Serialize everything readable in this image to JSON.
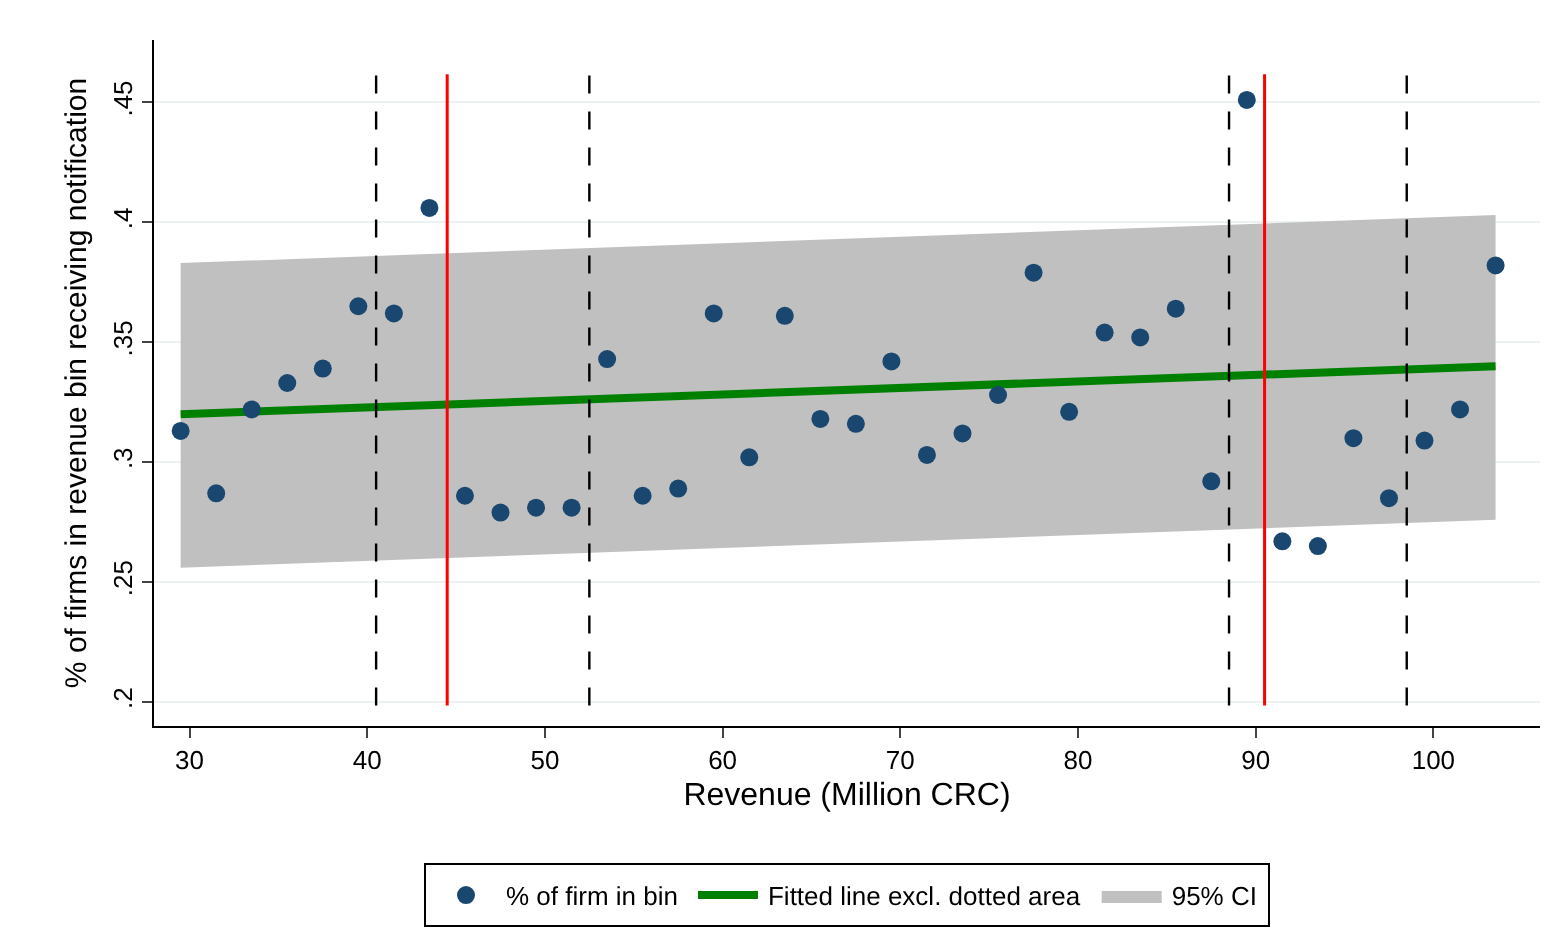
{
  "chart_data": {
    "type": "scatter",
    "xlabel": "Revenue (Million CRC)",
    "ylabel": "% of firms in revenue bin receiving notification",
    "xlim": [
      28,
      106
    ],
    "ylim": [
      0.19,
      0.476
    ],
    "xticks": [
      30,
      40,
      50,
      60,
      70,
      80,
      90,
      100
    ],
    "yticks": [
      {
        "value": 0.2,
        "label": ".2"
      },
      {
        "value": 0.25,
        "label": ".25"
      },
      {
        "value": 0.3,
        "label": ".3"
      },
      {
        "value": 0.35,
        "label": ".35"
      },
      {
        "value": 0.4,
        "label": ".4"
      },
      {
        "value": 0.45,
        "label": ".45"
      }
    ],
    "annotations": [
      "95% CI"
    ],
    "grid": "y",
    "legend": "bottom",
    "series": [
      {
        "name": "% of firm in bin",
        "marker": "circle",
        "color": "#1a476f",
        "x": [
          29.5,
          31.5,
          33.5,
          35.5,
          37.5,
          39.5,
          41.5,
          43.5,
          45.5,
          47.5,
          49.5,
          51.5,
          53.5,
          55.5,
          57.5,
          59.5,
          61.5,
          63.5,
          65.5,
          67.5,
          69.5,
          71.5,
          73.5,
          75.5,
          77.5,
          79.5,
          81.5,
          83.5,
          85.5,
          87.5,
          89.5,
          91.5,
          93.5,
          95.5,
          97.5,
          99.5,
          101.5,
          103.5
        ],
        "values": [
          0.313,
          0.287,
          0.322,
          0.333,
          0.339,
          0.365,
          0.362,
          0.406,
          0.286,
          0.279,
          0.281,
          0.281,
          0.343,
          0.286,
          0.289,
          0.362,
          0.302,
          0.361,
          0.318,
          0.316,
          0.342,
          0.303,
          0.312,
          0.328,
          0.379,
          0.321,
          0.354,
          0.352,
          0.364,
          0.292,
          0.451,
          0.267,
          0.265,
          0.31,
          0.285,
          0.309,
          0.322,
          0.382
        ]
      },
      {
        "name": "Fitted line excl. dotted area",
        "type": "line",
        "marker": "none",
        "color": "#008000",
        "line_style": "solid",
        "x": [
          29.5,
          103.5
        ],
        "values": [
          0.32,
          0.34
        ],
        "lower": [
          0.256,
          0.276
        ],
        "upper": [
          0.383,
          0.403
        ]
      }
    ],
    "ref_lines": [
      {
        "axis": "x",
        "value": 40.5,
        "color": "#000000",
        "line_style": "dashed"
      },
      {
        "axis": "x",
        "value": 52.5,
        "color": "#000000",
        "line_style": "dashed"
      },
      {
        "axis": "x",
        "value": 88.5,
        "color": "#000000",
        "line_style": "dashed"
      },
      {
        "axis": "x",
        "value": 98.5,
        "color": "#000000",
        "line_style": "dashed"
      },
      {
        "axis": "x",
        "value": 44.5,
        "color": "#ff0000",
        "line_style": "solid"
      },
      {
        "axis": "x",
        "value": 90.5,
        "color": "#ff0000",
        "line_style": "solid"
      }
    ]
  }
}
